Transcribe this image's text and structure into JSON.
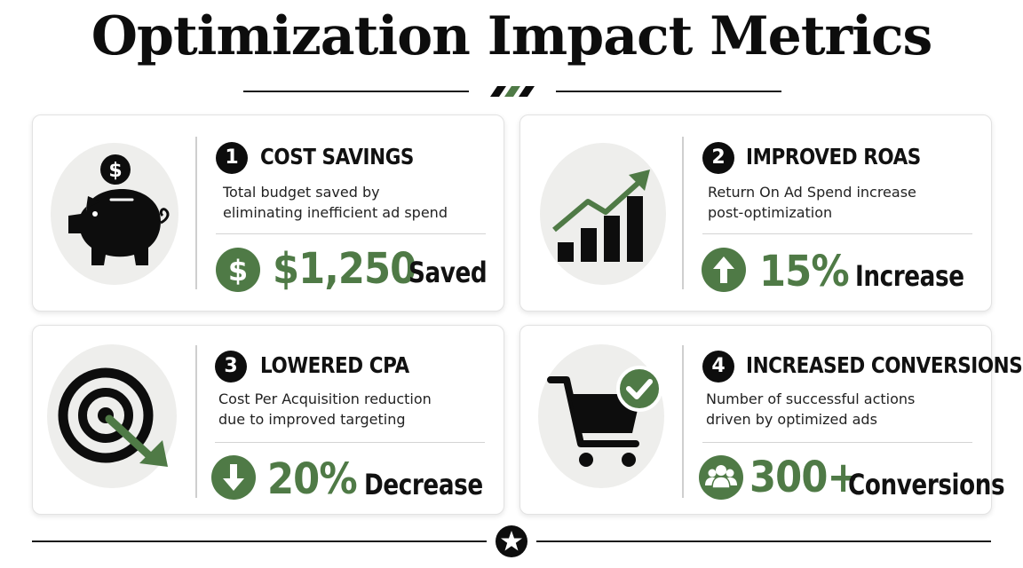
{
  "title": "Optimization Impact Metrics",
  "colors": {
    "accent": "#4f7a46",
    "dark": "#0d0d0d",
    "circle_bg": "#eeeeec"
  },
  "cards": [
    {
      "number": "1",
      "heading": "COST SAVINGS",
      "description": "Total budget saved by\neliminating inefficient ad spend",
      "value": "$1,250",
      "unit": "Saved",
      "icon": "piggy-bank-icon",
      "metric_icon": "dollar-icon"
    },
    {
      "number": "2",
      "heading": "IMPROVED ROAS",
      "description": "Return On Ad Spend increase\npost-optimization",
      "value": "15%",
      "unit": "Increase",
      "icon": "growth-chart-icon",
      "metric_icon": "arrow-up-icon"
    },
    {
      "number": "3",
      "heading": "LOWERED CPA",
      "description": "Cost Per Acquisition reduction\ndue to improved targeting",
      "value": "20%",
      "unit": "Decrease",
      "icon": "target-icon",
      "metric_icon": "arrow-down-icon"
    },
    {
      "number": "4",
      "heading": "INCREASED CONVERSIONS",
      "description": "Number of successful actions\ndriven by optimized ads",
      "value": "300+",
      "unit": "Conversions",
      "icon": "shopping-cart-check-icon",
      "metric_icon": "users-icon"
    }
  ],
  "footer_icon": "star-icon"
}
